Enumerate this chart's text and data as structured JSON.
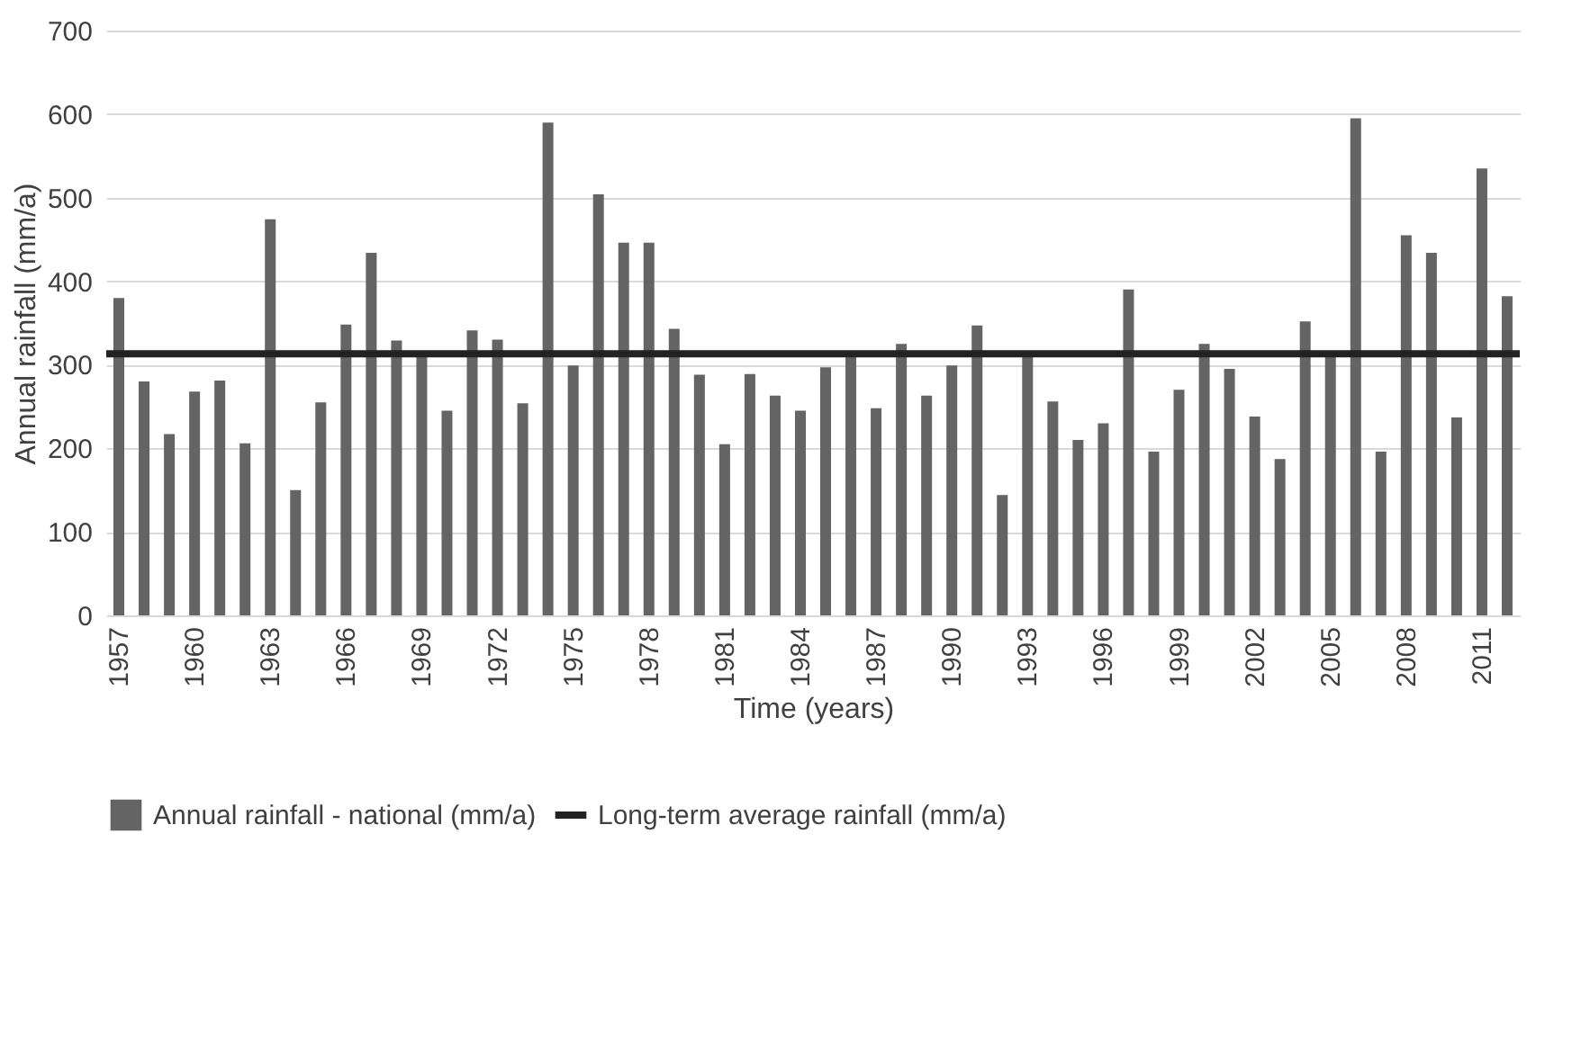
{
  "chart_data": {
    "type": "bar",
    "xlabel": "Time (years)",
    "ylabel": "Annual rainfall (mm/a)",
    "categories": [
      "1957",
      null,
      null,
      "1960",
      null,
      null,
      "1963",
      null,
      null,
      "1966",
      null,
      null,
      "1969",
      null,
      null,
      "1972",
      null,
      null,
      "1975",
      null,
      null,
      "1978",
      null,
      null,
      "1981",
      null,
      null,
      "1984",
      null,
      null,
      "1987",
      null,
      null,
      "1990",
      null,
      null,
      "1993",
      null,
      null,
      "1996",
      null,
      null,
      "1999",
      null,
      null,
      "2002",
      null,
      null,
      "2005",
      null,
      null,
      "2008",
      null,
      null,
      "2011",
      null
    ],
    "series": [
      {
        "name": "Annual rainfall - national (mm/a)",
        "color": "#646464",
        "values": [
          380,
          280,
          217,
          268,
          281,
          206,
          474,
          150,
          255,
          348,
          434,
          329,
          312,
          245,
          341,
          330,
          254,
          590,
          299,
          504,
          446,
          446,
          343,
          288,
          205,
          289,
          263,
          245,
          297,
          312,
          248,
          325,
          263,
          299,
          347,
          144,
          312,
          256,
          210,
          230,
          390,
          196,
          270,
          325,
          295,
          238,
          187,
          352,
          312,
          595,
          196,
          455,
          434,
          237,
          535,
          382
        ]
      }
    ],
    "ref_lines": [
      {
        "axis": "y",
        "value": 313,
        "label": "Long-term average rainfall (mm/a)",
        "color": "#222222",
        "line_style": "solid"
      }
    ],
    "ylim": [
      0,
      700
    ],
    "yticks": [
      0,
      100,
      200,
      300,
      400,
      500,
      600,
      700
    ],
    "grid": "y",
    "legend": "bottom"
  }
}
